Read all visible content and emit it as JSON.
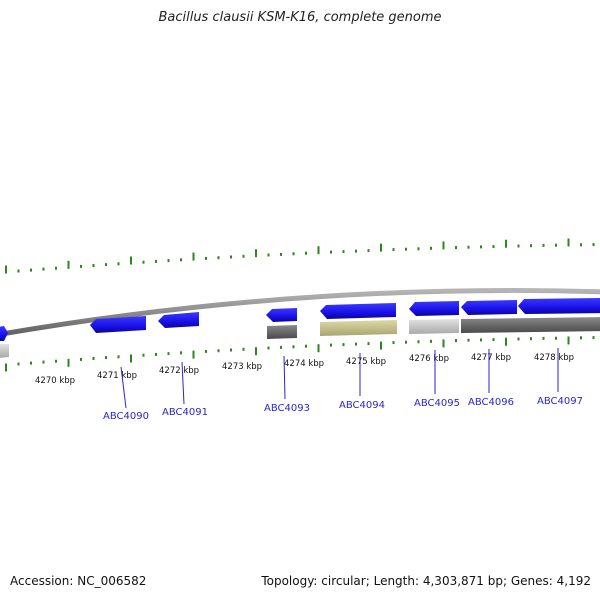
{
  "title": "Bacillus clausii KSM-K16, complete genome",
  "footer": {
    "accession_label": "Accession:",
    "accession": "NC_006582",
    "topology_label": "Topology:",
    "topology": "circular",
    "length_label": "Length:",
    "length": "4,303,871 bp",
    "genes_label": "Genes:",
    "genes": "4,192"
  },
  "position_ruler": {
    "unit": "kbp",
    "labels": [
      "4270 kbp",
      "4271 kbp",
      "4272 kbp",
      "4273 kbp",
      "4274 kbp",
      "4275 kbp",
      "4276 kbp",
      "4277 kbp",
      "4278 kbp"
    ]
  },
  "genes": [
    {
      "id": "gene-0",
      "label": ""
    },
    {
      "id": "gene-1",
      "label": "ABC4090"
    },
    {
      "id": "gene-2",
      "label": "ABC4091"
    },
    {
      "id": "gene-3",
      "label": "ABC4093"
    },
    {
      "id": "gene-4",
      "label": "ABC4094"
    },
    {
      "id": "gene-5",
      "label": "ABC4095"
    },
    {
      "id": "gene-6",
      "label": "ABC4096"
    },
    {
      "id": "gene-7",
      "label": "ABC4097"
    }
  ],
  "colors": {
    "gene_forward": "#1a10e8",
    "gene_label": "#2a26cc",
    "ruler_tick": "#2a8a17",
    "backbone": "#8a8a8a",
    "hit_dark": "#6b6b6b",
    "hit_light": "#c8c8c8",
    "hit_khaki": "#c3c08e",
    "text": "#111111"
  }
}
